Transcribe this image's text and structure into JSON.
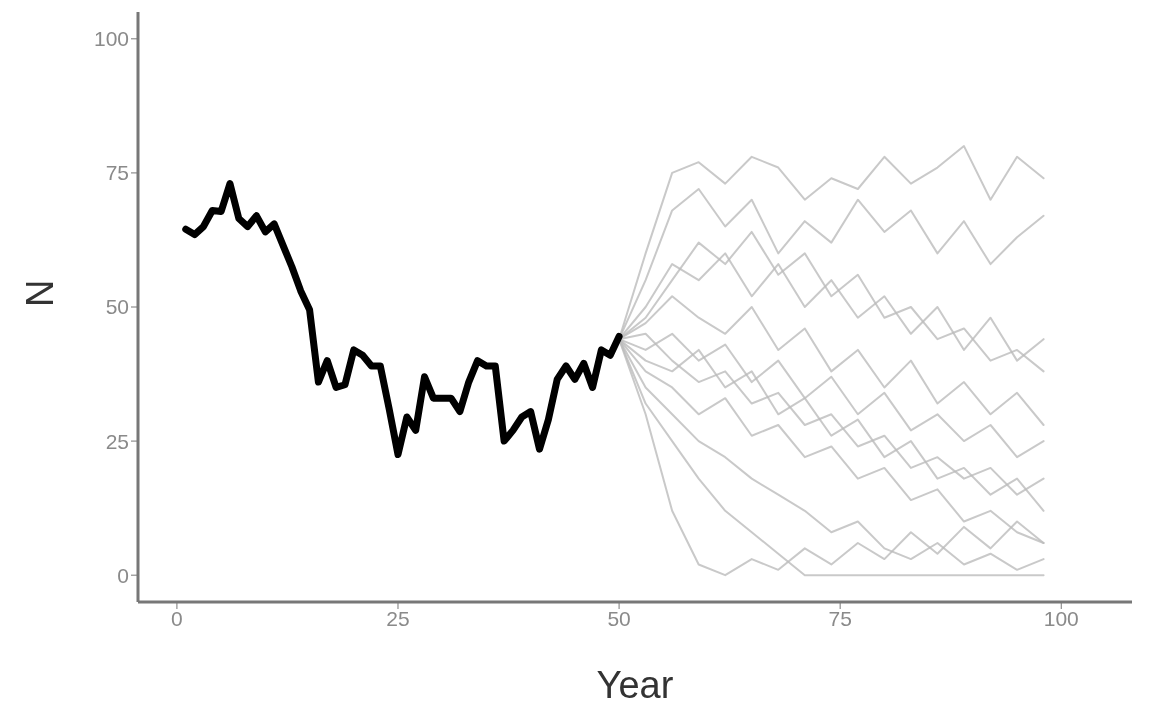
{
  "chart_data": {
    "type": "line",
    "xlabel": "Year",
    "ylabel": "N",
    "xlim": [
      -4.4,
      108
    ],
    "xticks": [
      0,
      25,
      50,
      75,
      100
    ],
    "ylim": [
      -5,
      105
    ],
    "yticks": [
      0,
      25,
      50,
      75,
      100
    ],
    "grid": false,
    "legend": false,
    "marker": "none",
    "line_style": "solid",
    "series": [
      {
        "color": "#000000",
        "x": [
          1,
          2,
          3,
          4,
          5,
          6,
          7,
          8,
          9,
          10,
          11,
          12,
          13,
          14,
          15,
          16,
          17,
          18,
          19,
          20,
          21,
          22,
          23,
          24,
          25,
          26,
          27,
          28,
          29,
          30,
          31,
          32,
          33,
          34,
          35,
          36,
          37,
          38,
          39,
          40,
          41,
          42,
          43,
          44,
          45,
          46,
          47,
          48,
          49,
          50
        ],
        "values": [
          64.5,
          63.5,
          65,
          68,
          67.8,
          73,
          66.5,
          65,
          67,
          64,
          65.5,
          61.5,
          57.5,
          53,
          49.5,
          36,
          40,
          35,
          35.5,
          42,
          41,
          39,
          39,
          31,
          22.5,
          29.5,
          27,
          37,
          33,
          33,
          33,
          30.5,
          36,
          40,
          39,
          39,
          25,
          27,
          29.5,
          30.5,
          23.5,
          29,
          36.5,
          39,
          36.5,
          39.5,
          35,
          42,
          41,
          44.5
        ]
      },
      {
        "color": "#bbbbbb",
        "x": [
          50,
          53,
          56,
          59,
          62,
          65,
          68,
          71,
          74,
          77,
          80,
          83,
          86,
          89,
          92,
          95,
          98
        ],
        "values": [
          44,
          60,
          75,
          77,
          73,
          78,
          76,
          70,
          74,
          72,
          78,
          73,
          76,
          80,
          70,
          78,
          74
        ]
      },
      {
        "color": "#bbbbbb",
        "x": [
          50,
          53,
          56,
          59,
          62,
          65,
          68,
          71,
          74,
          77,
          80,
          83,
          86,
          89,
          92,
          95,
          98
        ],
        "values": [
          44,
          55,
          68,
          72,
          65,
          70,
          60,
          66,
          62,
          70,
          64,
          68,
          60,
          66,
          58,
          63,
          67
        ]
      },
      {
        "color": "#bbbbbb",
        "x": [
          50,
          53,
          56,
          59,
          62,
          65,
          68,
          71,
          74,
          77,
          80,
          83,
          86,
          89,
          92,
          95,
          98
        ],
        "values": [
          44,
          50,
          58,
          55,
          60,
          52,
          58,
          50,
          55,
          48,
          52,
          45,
          50,
          42,
          48,
          40,
          44
        ]
      },
      {
        "color": "#bbbbbb",
        "x": [
          50,
          53,
          56,
          59,
          62,
          65,
          68,
          71,
          74,
          77,
          80,
          83,
          86,
          89,
          92,
          95,
          98
        ],
        "values": [
          44,
          47,
          52,
          48,
          45,
          50,
          42,
          46,
          38,
          42,
          35,
          40,
          32,
          36,
          30,
          34,
          28
        ]
      },
      {
        "color": "#bbbbbb",
        "x": [
          50,
          53,
          56,
          59,
          62,
          65,
          68,
          71,
          74,
          77,
          80,
          83,
          86,
          89,
          92,
          95,
          98
        ],
        "values": [
          44,
          42,
          45,
          40,
          43,
          36,
          40,
          33,
          37,
          30,
          34,
          27,
          30,
          25,
          28,
          22,
          25
        ]
      },
      {
        "color": "#bbbbbb",
        "x": [
          50,
          53,
          56,
          59,
          62,
          65,
          68,
          71,
          74,
          77,
          80,
          83,
          86,
          89,
          92,
          95,
          98
        ],
        "values": [
          44,
          40,
          38,
          42,
          35,
          38,
          30,
          33,
          26,
          29,
          22,
          25,
          18,
          20,
          15,
          18,
          12
        ]
      },
      {
        "color": "#bbbbbb",
        "x": [
          50,
          53,
          56,
          59,
          62,
          65,
          68,
          71,
          74,
          77,
          80,
          83,
          86,
          89,
          92,
          95,
          98
        ],
        "values": [
          44,
          38,
          35,
          30,
          33,
          26,
          28,
          22,
          24,
          18,
          20,
          14,
          16,
          10,
          12,
          8,
          6
        ]
      },
      {
        "color": "#bbbbbb",
        "x": [
          50,
          53,
          56,
          59,
          62,
          65,
          68,
          71,
          74,
          77,
          80,
          83,
          86,
          89,
          92,
          95,
          98
        ],
        "values": [
          44,
          35,
          30,
          25,
          22,
          18,
          15,
          12,
          8,
          10,
          5,
          3,
          6,
          2,
          4,
          1,
          3
        ]
      },
      {
        "color": "#bbbbbb",
        "x": [
          50,
          53,
          56,
          59,
          62,
          65,
          68,
          71,
          74,
          77,
          80,
          83,
          86,
          89,
          92,
          95,
          98
        ],
        "values": [
          44,
          32,
          25,
          18,
          12,
          8,
          4,
          0,
          0,
          0,
          0,
          0,
          0,
          0,
          0,
          0,
          0
        ]
      },
      {
        "color": "#bbbbbb",
        "x": [
          50,
          53,
          56,
          59,
          62,
          65,
          68,
          71,
          74,
          77,
          80,
          83,
          86,
          89,
          92,
          95,
          98
        ],
        "values": [
          44,
          30,
          12,
          2,
          0,
          3,
          1,
          5,
          2,
          6,
          3,
          8,
          4,
          9,
          5,
          10,
          6
        ]
      },
      {
        "color": "#bbbbbb",
        "x": [
          50,
          53,
          56,
          59,
          62,
          65,
          68,
          71,
          74,
          77,
          80,
          83,
          86,
          89,
          92,
          95,
          98
        ],
        "values": [
          44,
          48,
          55,
          62,
          58,
          64,
          56,
          60,
          52,
          56,
          48,
          50,
          44,
          46,
          40,
          42,
          38
        ]
      },
      {
        "color": "#bbbbbb",
        "x": [
          50,
          53,
          56,
          59,
          62,
          65,
          68,
          71,
          74,
          77,
          80,
          83,
          86,
          89,
          92,
          95,
          98
        ],
        "values": [
          44,
          45,
          40,
          36,
          38,
          32,
          34,
          28,
          30,
          24,
          26,
          20,
          22,
          18,
          20,
          15,
          18
        ]
      }
    ]
  }
}
